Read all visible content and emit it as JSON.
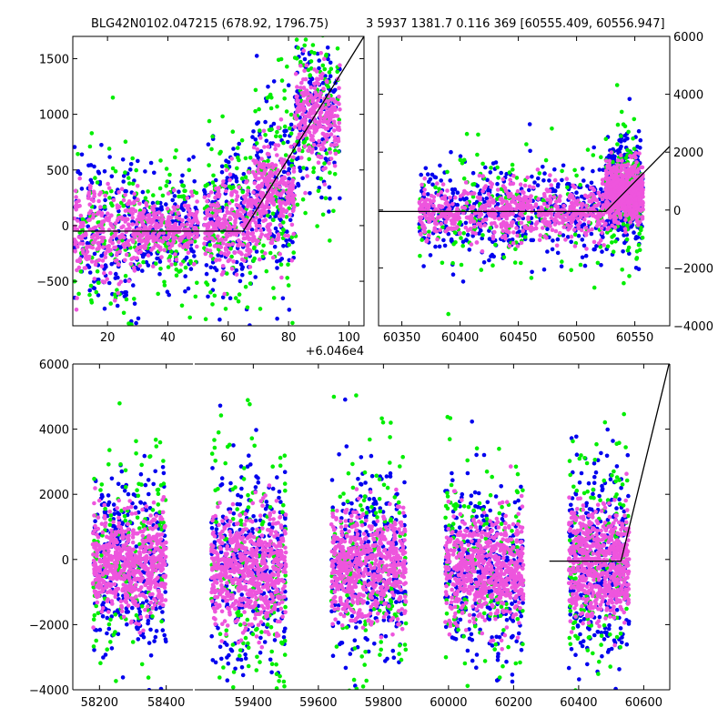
{
  "figure": {
    "title_left": "BLG42N0102.047215 (678.92, 1796.75)",
    "title_right": "3 5937 1381.7 0.116 369 [60555.409, 60556.947]"
  },
  "colors": {
    "blue": "#0000ee",
    "green": "#00ee00",
    "magenta": "#ee55dd",
    "line": "#000000",
    "axis": "#000000"
  },
  "chart_data": [
    {
      "id": "top-left",
      "type": "scatter",
      "xlim": [
        8.5,
        105
      ],
      "ylim": [
        -900,
        1700
      ],
      "xticks": [
        20,
        40,
        60,
        80,
        100
      ],
      "xtick_labels": [
        "20",
        "40",
        "60",
        "80",
        "100"
      ],
      "yticks": [
        -500,
        0,
        500,
        1000,
        1500
      ],
      "ytick_labels": [
        "−500",
        "0",
        "500",
        "1000",
        "1500"
      ],
      "offset_label": "+6.046e4",
      "model_line": [
        [
          8.5,
          -50
        ],
        [
          65,
          -50
        ],
        [
          105,
          1700
        ]
      ],
      "clusters": [
        {
          "x": [
            9,
            30
          ],
          "y_center": -60,
          "y_sd": 380
        },
        {
          "x": [
            30,
            50
          ],
          "y_center": -40,
          "y_sd": 240
        },
        {
          "x": [
            52,
            68
          ],
          "y_center": -20,
          "y_sd": 360
        },
        {
          "x": [
            68,
            82
          ],
          "y_center": 300,
          "y_sd": 420
        },
        {
          "x": [
            82,
            97
          ],
          "y_center": 1000,
          "y_sd": 380
        }
      ],
      "y_axis_side": "left",
      "series": [
        {
          "color": "blue"
        },
        {
          "color": "green"
        },
        {
          "color": "magenta"
        }
      ]
    },
    {
      "id": "top-right",
      "type": "scatter",
      "xlim": [
        60330,
        60580
      ],
      "ylim": [
        -4000,
        6000
      ],
      "xticks": [
        60350,
        60400,
        60450,
        60500,
        60550
      ],
      "xtick_labels": [
        "60350",
        "60400",
        "60450",
        "60500",
        "60550"
      ],
      "yticks": [
        -4000,
        -2000,
        0,
        2000,
        4000,
        6000
      ],
      "ytick_labels": [
        "−4000",
        "−2000",
        "0",
        "2000",
        "4000",
        "6000"
      ],
      "model_line": [
        [
          60330,
          -50
        ],
        [
          60525,
          -50
        ],
        [
          60580,
          2200
        ]
      ],
      "clusters": [
        {
          "x": [
            60365,
            60525
          ],
          "y_center": -80,
          "y_sd": 900
        },
        {
          "x": [
            60525,
            60557
          ],
          "y_center": 600,
          "y_sd": 900
        }
      ],
      "y_axis_side": "right",
      "series": [
        {
          "color": "blue"
        },
        {
          "color": "green"
        },
        {
          "color": "magenta"
        }
      ]
    },
    {
      "id": "bottom",
      "type": "scatter",
      "segments": [
        {
          "xlim": [
            58120,
            58480
          ],
          "xticks": [
            58200,
            58400
          ],
          "xtick_labels": [
            "58200",
            "58400"
          ]
        },
        {
          "xlim": [
            59220,
            60680
          ],
          "xticks": [
            59400,
            59600,
            59800,
            60000,
            60200,
            60400,
            60600
          ],
          "xtick_labels": [
            "59400",
            "59600",
            "59800",
            "60000",
            "60200",
            "60400",
            "60600"
          ]
        }
      ],
      "ylim": [
        -4000,
        6000
      ],
      "yticks": [
        -4000,
        -2000,
        0,
        2000,
        4000,
        6000
      ],
      "ytick_labels": [
        "−4000",
        "−2000",
        "0",
        "2000",
        "4000",
        "6000"
      ],
      "model_line": [
        [
          60310,
          -50
        ],
        [
          60530,
          -50
        ],
        [
          60680,
          6100
        ]
      ],
      "clusters": [
        {
          "x": [
            58180,
            58400
          ],
          "y_center": -100,
          "y_sd": 1400
        },
        {
          "x": [
            59270,
            59500
          ],
          "y_center": -300,
          "y_sd": 1600
        },
        {
          "x": [
            59640,
            59870
          ],
          "y_center": -200,
          "y_sd": 1500
        },
        {
          "x": [
            59990,
            60230
          ],
          "y_center": -300,
          "y_sd": 1500
        },
        {
          "x": [
            60370,
            60555
          ],
          "y_center": -100,
          "y_sd": 1500
        }
      ],
      "series": [
        {
          "color": "blue"
        },
        {
          "color": "green"
        },
        {
          "color": "magenta"
        }
      ]
    }
  ]
}
